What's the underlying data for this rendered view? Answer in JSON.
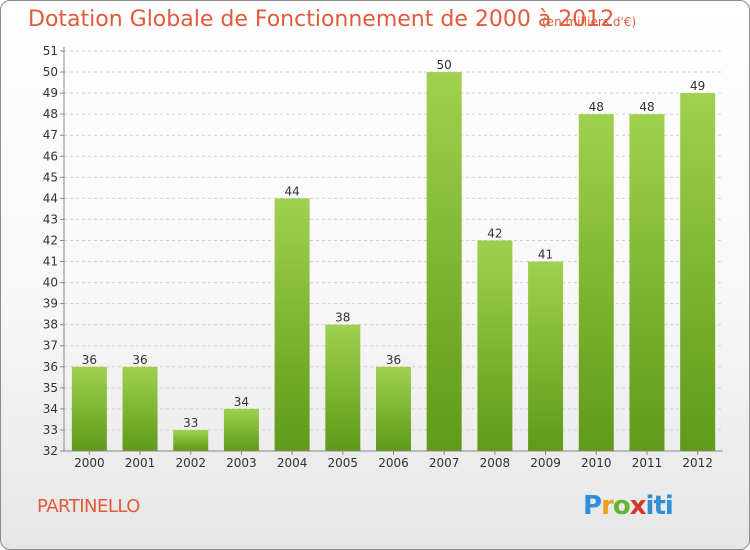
{
  "header": {
    "title": "Dotation Globale de Fonctionnement de 2000 à 2012",
    "unit": "(en milliers d'€)"
  },
  "footer": {
    "commune": "PARTINELLO",
    "logo_text": "Proxiti"
  },
  "colors": {
    "title": "#e15a3c",
    "bar_top": "#9fd14e",
    "bar_bottom": "#5f9a18",
    "axis": "#888888",
    "grid": "#d0d0d0"
  },
  "chart_data": {
    "type": "bar",
    "title": "Dotation Globale de Fonctionnement de 2000 à 2012",
    "subtitle": "(en milliers d'€)",
    "xlabel": "",
    "ylabel": "",
    "categories": [
      "2000",
      "2001",
      "2002",
      "2003",
      "2004",
      "2005",
      "2006",
      "2007",
      "2008",
      "2009",
      "2010",
      "2011",
      "2012"
    ],
    "values": [
      36,
      36,
      33,
      34,
      44,
      38,
      36,
      50,
      42,
      41,
      48,
      48,
      49
    ],
    "ylim": [
      32,
      51
    ],
    "yticks": [
      32,
      33,
      34,
      35,
      36,
      37,
      38,
      39,
      40,
      41,
      42,
      43,
      44,
      45,
      46,
      47,
      48,
      49,
      50,
      51
    ],
    "grid": true,
    "data_labels": true
  }
}
